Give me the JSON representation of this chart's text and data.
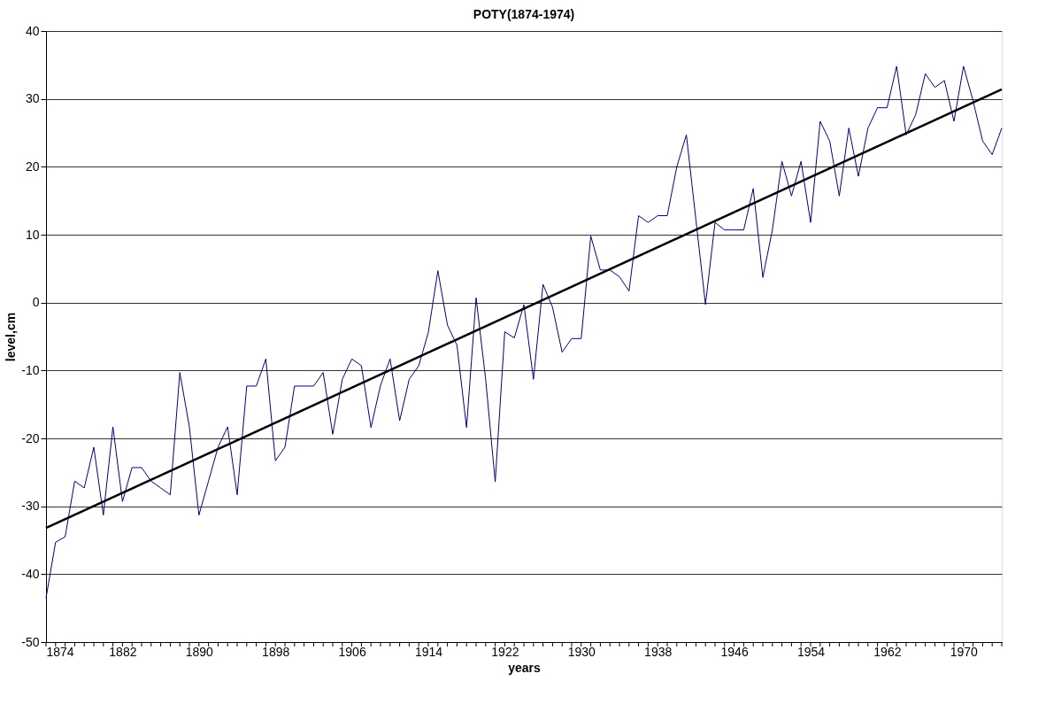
{
  "chart_data": {
    "type": "line",
    "title": "POTY(1874-1974)",
    "xlabel": "years",
    "ylabel": "level,cm",
    "x": [
      1874,
      1875,
      1876,
      1877,
      1878,
      1879,
      1880,
      1881,
      1882,
      1883,
      1884,
      1885,
      1886,
      1887,
      1888,
      1889,
      1890,
      1891,
      1892,
      1893,
      1894,
      1895,
      1896,
      1897,
      1898,
      1899,
      1900,
      1901,
      1902,
      1903,
      1904,
      1905,
      1906,
      1907,
      1908,
      1909,
      1910,
      1911,
      1912,
      1913,
      1914,
      1915,
      1916,
      1917,
      1918,
      1919,
      1920,
      1921,
      1922,
      1923,
      1924,
      1925,
      1926,
      1927,
      1928,
      1929,
      1930,
      1931,
      1932,
      1933,
      1934,
      1935,
      1936,
      1937,
      1938,
      1939,
      1940,
      1941,
      1942,
      1943,
      1944,
      1945,
      1946,
      1947,
      1948,
      1949,
      1950,
      1951,
      1952,
      1953,
      1954,
      1955,
      1956,
      1957,
      1958,
      1959,
      1960,
      1961,
      1962,
      1963,
      1964,
      1965,
      1966,
      1967,
      1968,
      1969,
      1970,
      1971,
      1972,
      1973,
      1974
    ],
    "series": [
      {
        "color": "#000080",
        "values": [
          -43.5,
          -35.3,
          -34.5,
          -26.3,
          -27.3,
          -21.3,
          -31.3,
          -18.3,
          -29.3,
          -24.3,
          -24.3,
          -26.3,
          -27.3,
          -28.3,
          -10.3,
          -18.3,
          -31.3,
          -26.3,
          -21.3,
          -18.3,
          -28.3,
          -12.3,
          -12.3,
          -8.3,
          -23.3,
          -21.3,
          -12.3,
          -12.3,
          -12.3,
          -10.3,
          -19.4,
          -11.3,
          -8.3,
          -9.3,
          -18.4,
          -12.2,
          -8.3,
          -17.4,
          -11.3,
          -9.3,
          -4.4,
          4.7,
          -3.3,
          -6.3,
          -18.4,
          0.7,
          -11.3,
          -26.4,
          -4.3,
          -5.2,
          -0.3,
          -11.3,
          2.7,
          -0.7,
          -7.3,
          -5.3,
          -5.3,
          9.8,
          4.8,
          4.8,
          3.8,
          1.7,
          12.8,
          11.8,
          12.8,
          12.8,
          20.0,
          24.7,
          12.2,
          -0.3,
          11.8,
          10.7,
          10.7,
          10.7,
          16.8,
          3.7,
          10.7,
          20.8,
          15.7,
          20.8,
          11.8,
          26.7,
          23.8,
          15.7,
          25.7,
          18.6,
          25.7,
          28.7,
          28.7,
          34.8,
          24.7,
          27.7,
          33.7,
          31.7,
          32.7,
          26.7,
          34.8,
          29.7,
          23.8,
          21.8,
          25.7
        ]
      },
      {
        "type": "line",
        "color": "#000000",
        "x": [
          1874,
          1974
        ],
        "values": [
          -33.2,
          31.4
        ]
      }
    ],
    "xlim": [
      1874,
      1974
    ],
    "xticks": [
      1874,
      {
        "value": 1875,
        "label": null
      },
      {
        "value": 1876,
        "label": null
      },
      {
        "value": 1877,
        "label": null
      },
      {
        "value": 1878,
        "label": null
      },
      {
        "value": 1879,
        "label": null
      },
      {
        "value": 1880,
        "label": null
      },
      {
        "value": 1881,
        "label": null
      },
      1882,
      {
        "value": 1883,
        "label": null
      },
      {
        "value": 1884,
        "label": null
      },
      {
        "value": 1885,
        "label": null
      },
      {
        "value": 1886,
        "label": null
      },
      {
        "value": 1887,
        "label": null
      },
      {
        "value": 1888,
        "label": null
      },
      {
        "value": 1889,
        "label": null
      },
      1890,
      {
        "value": 1891,
        "label": null
      },
      {
        "value": 1892,
        "label": null
      },
      {
        "value": 1893,
        "label": null
      },
      {
        "value": 1894,
        "label": null
      },
      {
        "value": 1895,
        "label": null
      },
      {
        "value": 1896,
        "label": null
      },
      {
        "value": 1897,
        "label": null
      },
      1898,
      {
        "value": 1899,
        "label": null
      },
      {
        "value": 1900,
        "label": null
      },
      {
        "value": 1901,
        "label": null
      },
      {
        "value": 1902,
        "label": null
      },
      {
        "value": 1903,
        "label": null
      },
      {
        "value": 1904,
        "label": null
      },
      {
        "value": 1905,
        "label": null
      },
      1906,
      {
        "value": 1907,
        "label": null
      },
      {
        "value": 1908,
        "label": null
      },
      {
        "value": 1909,
        "label": null
      },
      {
        "value": 1910,
        "label": null
      },
      {
        "value": 1911,
        "label": null
      },
      {
        "value": 1912,
        "label": null
      },
      {
        "value": 1913,
        "label": null
      },
      1914,
      {
        "value": 1915,
        "label": null
      },
      {
        "value": 1916,
        "label": null
      },
      {
        "value": 1917,
        "label": null
      },
      {
        "value": 1918,
        "label": null
      },
      {
        "value": 1919,
        "label": null
      },
      {
        "value": 1920,
        "label": null
      },
      {
        "value": 1921,
        "label": null
      },
      1922,
      {
        "value": 1923,
        "label": null
      },
      {
        "value": 1924,
        "label": null
      },
      {
        "value": 1925,
        "label": null
      },
      {
        "value": 1926,
        "label": null
      },
      {
        "value": 1927,
        "label": null
      },
      {
        "value": 1928,
        "label": null
      },
      {
        "value": 1929,
        "label": null
      },
      1930,
      {
        "value": 1931,
        "label": null
      },
      {
        "value": 1932,
        "label": null
      },
      {
        "value": 1933,
        "label": null
      },
      {
        "value": 1934,
        "label": null
      },
      {
        "value": 1935,
        "label": null
      },
      {
        "value": 1936,
        "label": null
      },
      {
        "value": 1937,
        "label": null
      },
      1938,
      {
        "value": 1939,
        "label": null
      },
      {
        "value": 1940,
        "label": null
      },
      {
        "value": 1941,
        "label": null
      },
      {
        "value": 1942,
        "label": null
      },
      {
        "value": 1943,
        "label": null
      },
      {
        "value": 1944,
        "label": null
      },
      {
        "value": 1945,
        "label": null
      },
      1946,
      {
        "value": 1947,
        "label": null
      },
      {
        "value": 1948,
        "label": null
      },
      {
        "value": 1949,
        "label": null
      },
      {
        "value": 1950,
        "label": null
      },
      {
        "value": 1951,
        "label": null
      },
      {
        "value": 1952,
        "label": null
      },
      {
        "value": 1953,
        "label": null
      },
      1954,
      {
        "value": 1955,
        "label": null
      },
      {
        "value": 1956,
        "label": null
      },
      {
        "value": 1957,
        "label": null
      },
      {
        "value": 1958,
        "label": null
      },
      {
        "value": 1959,
        "label": null
      },
      {
        "value": 1960,
        "label": null
      },
      {
        "value": 1961,
        "label": null
      },
      1962,
      {
        "value": 1963,
        "label": null
      },
      {
        "value": 1964,
        "label": null
      },
      {
        "value": 1965,
        "label": null
      },
      {
        "value": 1966,
        "label": null
      },
      {
        "value": 1967,
        "label": null
      },
      {
        "value": 1968,
        "label": null
      },
      {
        "value": 1969,
        "label": null
      },
      1970,
      {
        "value": 1971,
        "label": null
      },
      {
        "value": 1972,
        "label": null
      },
      {
        "value": 1973,
        "label": null
      },
      {
        "value": 1974,
        "label": null
      }
    ],
    "ylim": [
      -50,
      40
    ],
    "yticks": [
      -50,
      -40,
      -30,
      -20,
      -10,
      0,
      10,
      20,
      30,
      40
    ],
    "grid": "y",
    "marker": "none",
    "line_style": "solid"
  }
}
